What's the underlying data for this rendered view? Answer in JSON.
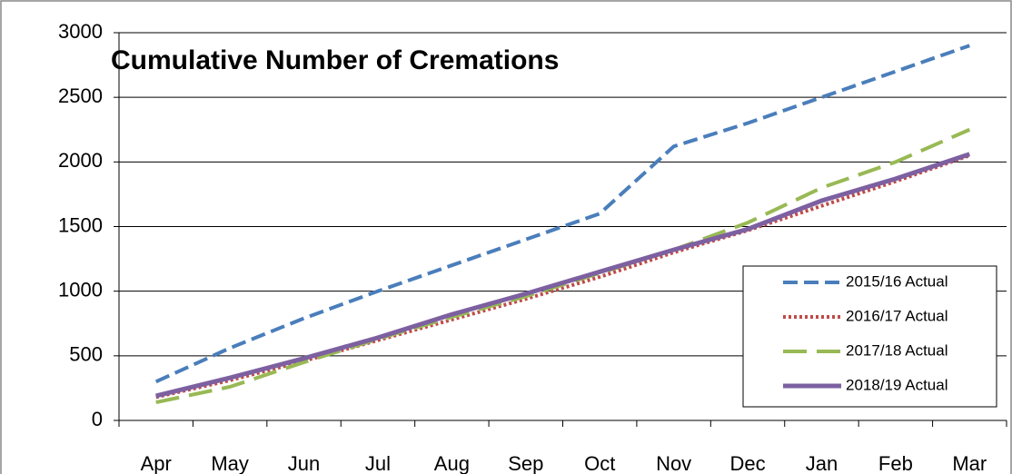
{
  "chart_data": {
    "type": "line",
    "title": "Cumulative Number of Cremations",
    "categories": [
      "Apr",
      "May",
      "Jun",
      "Jul",
      "Aug",
      "Sep",
      "Oct",
      "Nov",
      "Dec",
      "Jan",
      "Feb",
      "Mar"
    ],
    "series": [
      {
        "name": "2015/16 Actual",
        "color": "#4a7ebb",
        "dash": "16 7",
        "width": 4,
        "values": [
          300,
          560,
          790,
          1000,
          1200,
          1400,
          1600,
          2120,
          2300,
          2500,
          2700,
          2900
        ]
      },
      {
        "name": "2016/17 Actual",
        "color": "#be4b48",
        "dash": "3 3",
        "width": 4,
        "values": [
          180,
          310,
          460,
          620,
          780,
          940,
          1110,
          1300,
          1470,
          1660,
          1850,
          2050
        ]
      },
      {
        "name": "2017/18 Actual",
        "color": "#98b954",
        "dash": "26 11",
        "width": 4,
        "values": [
          140,
          260,
          450,
          630,
          800,
          960,
          1140,
          1320,
          1530,
          1800,
          2000,
          2250
        ]
      },
      {
        "name": "2018/19 Actual",
        "color": "#7d60a0",
        "dash": "none",
        "width": 5,
        "values": [
          190,
          330,
          480,
          640,
          820,
          980,
          1150,
          1320,
          1480,
          1700,
          1870,
          2060
        ]
      }
    ],
    "ylim": [
      0,
      3000
    ],
    "yticks": [
      0,
      500,
      1000,
      1500,
      2000,
      2500,
      3000
    ],
    "grid": true
  }
}
